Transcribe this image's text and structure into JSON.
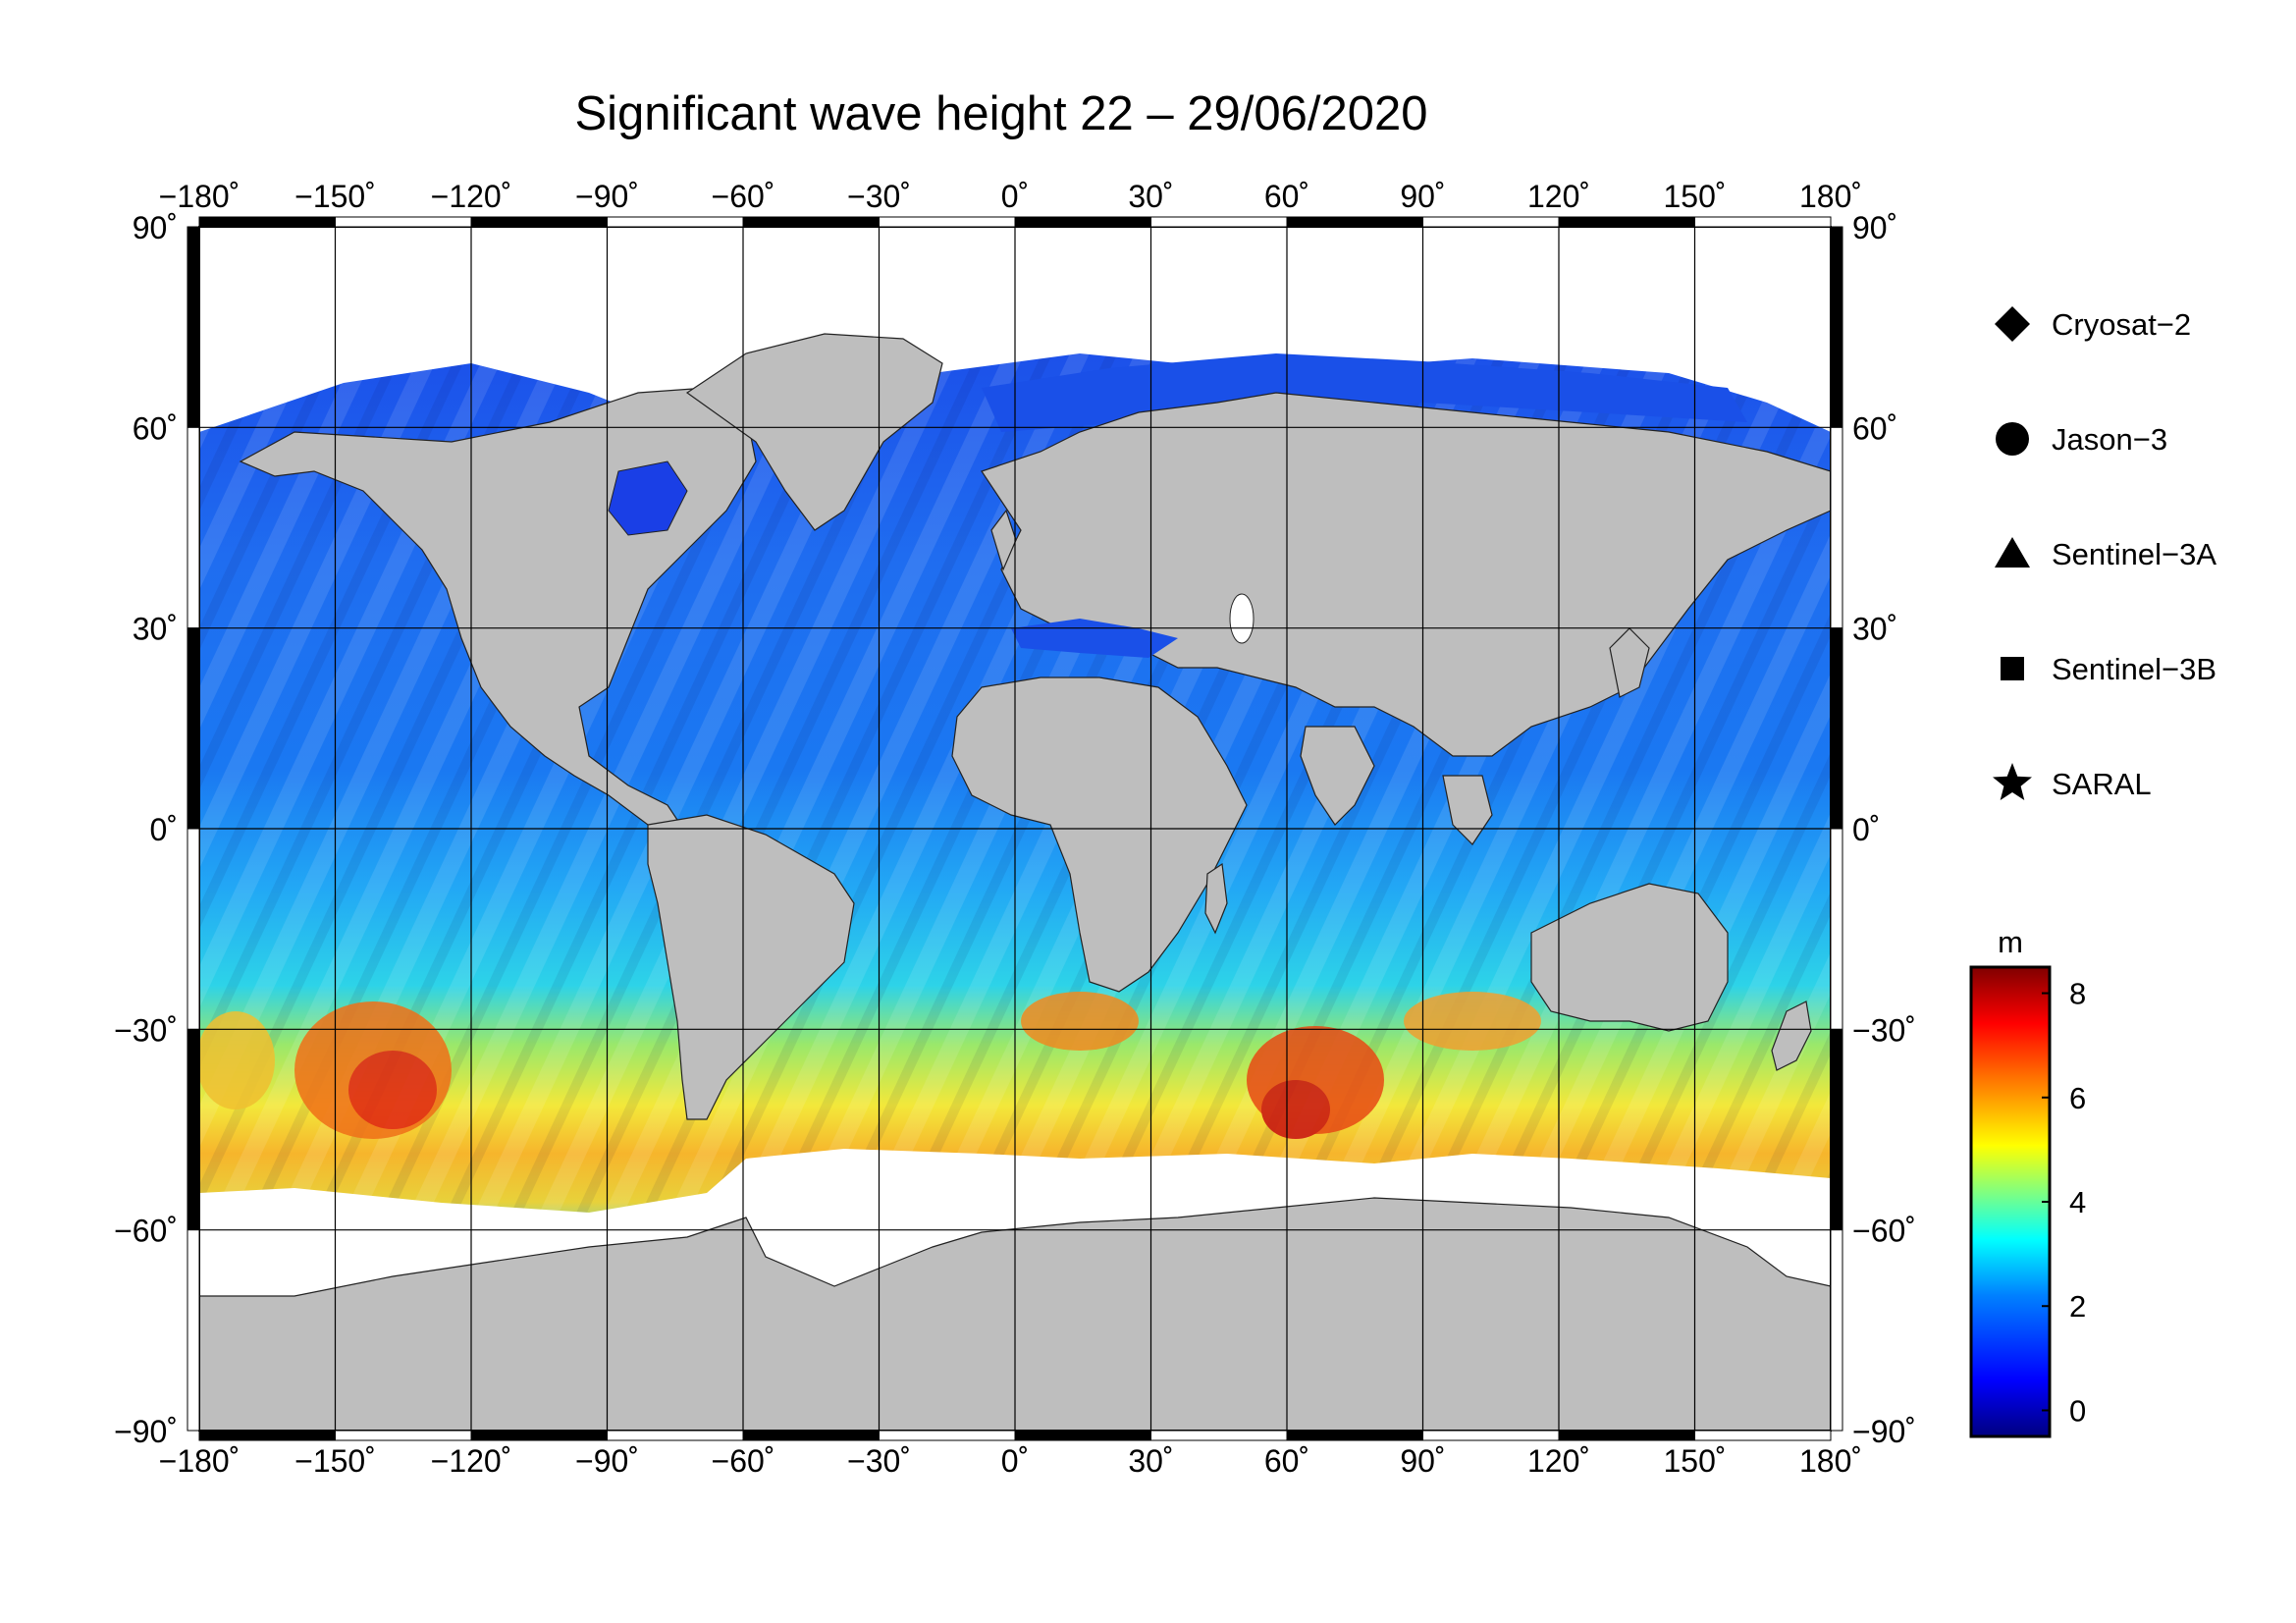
{
  "title": "Significant wave height 22 – 29/06/2020",
  "map": {
    "projection": "equirectangular",
    "lon_range": [
      -180,
      180
    ],
    "lat_range": [
      -90,
      90
    ],
    "lon_ticks": [
      -180,
      -150,
      -120,
      -90,
      -60,
      -30,
      0,
      30,
      60,
      90,
      120,
      150,
      180
    ],
    "lat_ticks": [
      90,
      60,
      30,
      0,
      -30,
      -60,
      -90
    ],
    "lon_tick_labels": [
      "−180˚",
      "−150˚",
      "−120˚",
      "−90˚",
      "−60˚",
      "−30˚",
      "0˚",
      "30˚",
      "60˚",
      "90˚",
      "120˚",
      "150˚",
      "180˚"
    ],
    "lat_tick_labels_left": [
      "90˚",
      "60˚",
      "30˚",
      "0˚",
      "−30˚",
      "−60˚",
      "−90˚"
    ],
    "lat_tick_labels_right": [
      "90˚",
      "60˚",
      "30˚",
      "0˚",
      "−30˚",
      "−60˚",
      "−90˚"
    ],
    "grid": true,
    "land_color": "#bebebe",
    "ice_color": "#ffffff"
  },
  "legend": {
    "placement": "right",
    "items": [
      {
        "label": "Cryosat−2",
        "symbol": "diamond"
      },
      {
        "label": "Jason−3",
        "symbol": "circle"
      },
      {
        "label": "Sentinel−3A",
        "symbol": "triangle"
      },
      {
        "label": "Sentinel−3B",
        "symbol": "square"
      },
      {
        "label": "SARAL",
        "symbol": "star"
      }
    ]
  },
  "colorbar": {
    "unit": "m",
    "min": -0.5,
    "max": 8.5,
    "ticks": [
      0,
      2,
      4,
      6,
      8
    ],
    "tick_labels": [
      "0",
      "2",
      "4",
      "6",
      "8"
    ],
    "colors": [
      "#000080",
      "#0000ff",
      "#0080ff",
      "#00ffff",
      "#80ff80",
      "#ffff00",
      "#ff8000",
      "#ff0000",
      "#800000"
    ]
  }
}
